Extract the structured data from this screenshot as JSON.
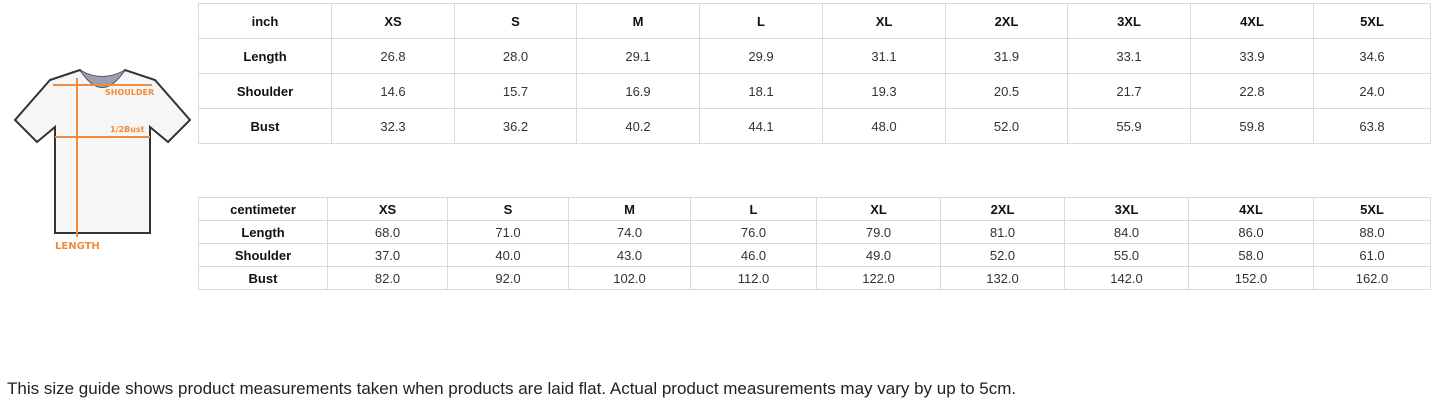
{
  "diagram": {
    "shoulder_label": "SHOULDER",
    "bust_label": "1/2Bust",
    "length_label": "LENGTH",
    "accent": "#f08a3c"
  },
  "inch_table": {
    "header": [
      "inch",
      "XS",
      "S",
      "M",
      "L",
      "XL",
      "2XL",
      "3XL",
      "4XL",
      "5XL"
    ],
    "rows": [
      {
        "label": "Length",
        "values": [
          "26.8",
          "28.0",
          "29.1",
          "29.9",
          "31.1",
          "31.9",
          "33.1",
          "33.9",
          "34.6"
        ]
      },
      {
        "label": "Shoulder",
        "values": [
          "14.6",
          "15.7",
          "16.9",
          "18.1",
          "19.3",
          "20.5",
          "21.7",
          "22.8",
          "24.0"
        ]
      },
      {
        "label": "Bust",
        "values": [
          "32.3",
          "36.2",
          "40.2",
          "44.1",
          "48.0",
          "52.0",
          "55.9",
          "59.8",
          "63.8"
        ]
      }
    ]
  },
  "cm_table": {
    "header": [
      "centimeter",
      "XS",
      "S",
      "M",
      "L",
      "XL",
      "2XL",
      "3XL",
      "4XL",
      "5XL"
    ],
    "rows": [
      {
        "label": "Length",
        "values": [
          "68.0",
          "71.0",
          "74.0",
          "76.0",
          "79.0",
          "81.0",
          "84.0",
          "86.0",
          "88.0"
        ]
      },
      {
        "label": "Shoulder",
        "values": [
          "37.0",
          "40.0",
          "43.0",
          "46.0",
          "49.0",
          "52.0",
          "55.0",
          "58.0",
          "61.0"
        ]
      },
      {
        "label": "Bust",
        "values": [
          "82.0",
          "92.0",
          "102.0",
          "112.0",
          "122.0",
          "132.0",
          "142.0",
          "152.0",
          "162.0"
        ]
      }
    ]
  },
  "note": "This size guide shows product measurements taken when products are laid flat. Actual product measurements may vary by up to 5cm."
}
